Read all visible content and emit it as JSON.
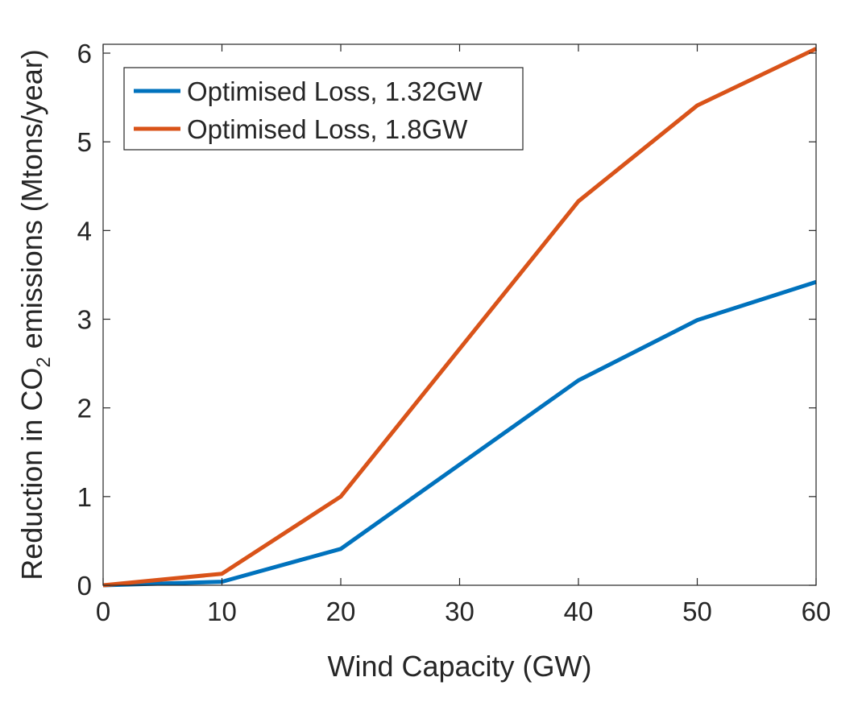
{
  "chart_data": {
    "type": "line",
    "title": "",
    "xlabel": "Wind Capacity (GW)",
    "ylabel": {
      "prefix": "Reduction in CO",
      "subscript": "2",
      "suffix": " emissions (Mtons/year)"
    },
    "xlim": [
      0,
      60
    ],
    "ylim": [
      0,
      6.1
    ],
    "xticks": [
      0,
      10,
      20,
      30,
      40,
      50,
      60
    ],
    "yticks": [
      0,
      1,
      2,
      3,
      4,
      5,
      6
    ],
    "grid": false,
    "legend_position": "top-left",
    "x": [
      0,
      10,
      20,
      40,
      50,
      60
    ],
    "series": [
      {
        "name": "Optimised Loss, 1.32GW",
        "color": "#0072BD",
        "values": [
          0,
          0.04,
          0.41,
          2.31,
          2.99,
          3.42
        ]
      },
      {
        "name": "Optimised Loss, 1.8GW",
        "color": "#D95319",
        "values": [
          0,
          0.13,
          1.0,
          4.33,
          5.41,
          6.05
        ]
      }
    ]
  }
}
